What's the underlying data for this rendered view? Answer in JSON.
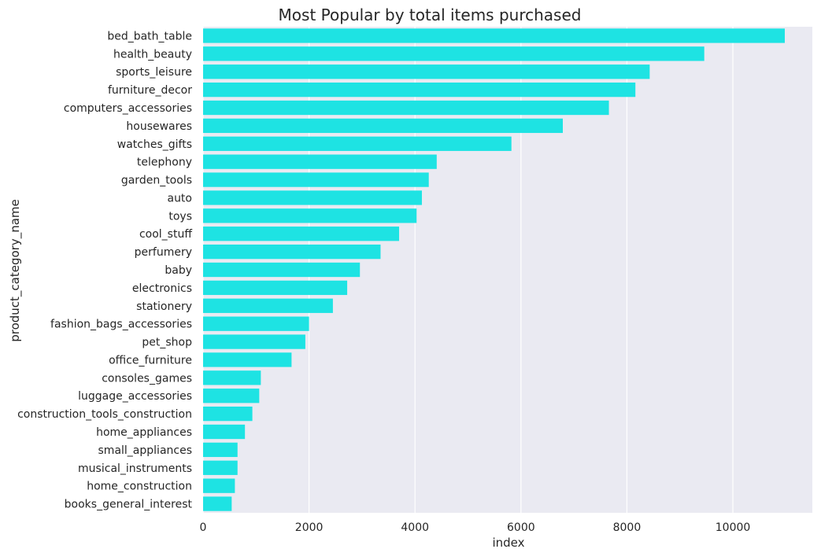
{
  "chart_data": {
    "type": "bar",
    "orientation": "horizontal",
    "title": "Most Popular by total items purchased",
    "xlabel": "index",
    "ylabel": "product_category_name",
    "xlim": [
      0,
      11500
    ],
    "xticks": [
      0,
      2000,
      4000,
      6000,
      8000,
      10000
    ],
    "grid": true,
    "bar_color": "#1ee3e3",
    "plot_bg": "#eaeaf2",
    "categories": [
      "bed_bath_table",
      "health_beauty",
      "sports_leisure",
      "furniture_decor",
      "computers_accessories",
      "housewares",
      "watches_gifts",
      "telephony",
      "garden_tools",
      "auto",
      "toys",
      "cool_stuff",
      "perfumery",
      "baby",
      "electronics",
      "stationery",
      "fashion_bags_accessories",
      "pet_shop",
      "office_furniture",
      "consoles_games",
      "luggage_accessories",
      "construction_tools_construction",
      "home_appliances",
      "small_appliances",
      "musical_instruments",
      "home_construction",
      "books_general_interest"
    ],
    "values": [
      10980,
      9460,
      8430,
      8160,
      7660,
      6790,
      5820,
      4410,
      4260,
      4130,
      4030,
      3700,
      3350,
      2960,
      2720,
      2450,
      2000,
      1930,
      1670,
      1090,
      1060,
      930,
      790,
      650,
      650,
      600,
      540
    ]
  }
}
